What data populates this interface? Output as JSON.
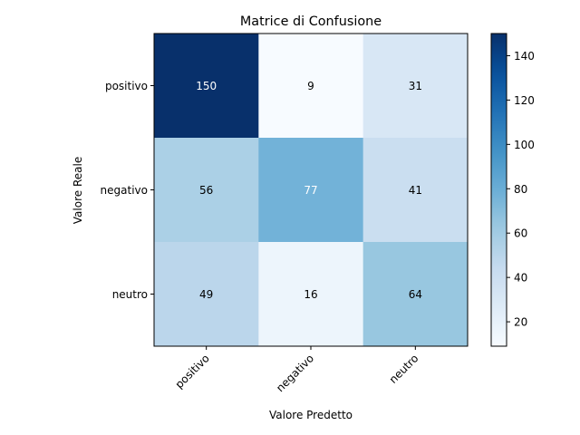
{
  "chart_data": {
    "type": "heatmap",
    "title": "Matrice di Confusione",
    "xlabel": "Valore Predetto",
    "ylabel": "Valore Reale",
    "x_categories": [
      "positivo",
      "negativo",
      "neutro"
    ],
    "y_categories": [
      "positivo",
      "negativo",
      "neutro"
    ],
    "values": [
      [
        150,
        9,
        31
      ],
      [
        56,
        77,
        41
      ],
      [
        49,
        16,
        64
      ]
    ],
    "colormap": "Blues",
    "color_range": [
      9,
      150
    ],
    "colorbar_ticks": [
      "20",
      "40",
      "60",
      "80",
      "100",
      "120",
      "140"
    ],
    "cell_label_colors": {
      "dark": "#ffffff",
      "light": "#000000"
    }
  }
}
